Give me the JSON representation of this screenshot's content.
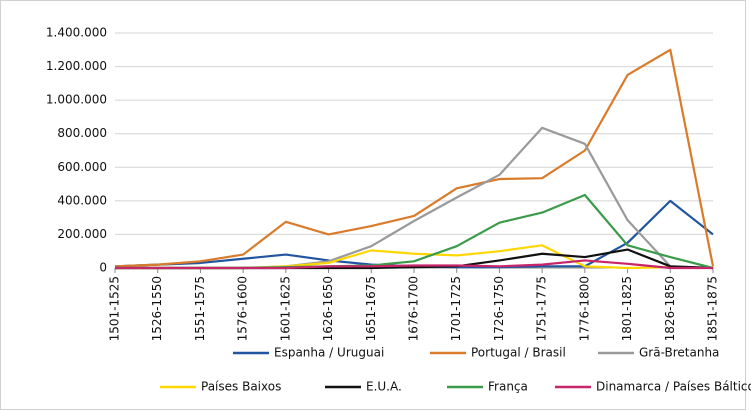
{
  "chart_data": {
    "type": "line",
    "categories": [
      "1501-1525",
      "1526-1550",
      "1551-1575",
      "1576-1600",
      "1601-1625",
      "1626-1650",
      "1651-1675",
      "1676-1700",
      "1701-1725",
      "1726-1750",
      "1751-1775",
      "1776-1800",
      "1801-1825",
      "1826-1850",
      "1851-1875"
    ],
    "series": [
      {
        "name": "Espanha / Uruguai",
        "color": "#2155a0",
        "values": [
          10000,
          20000,
          30000,
          55000,
          80000,
          45000,
          20000,
          10000,
          5000,
          5000,
          10000,
          10000,
          150000,
          400000,
          200000
        ]
      },
      {
        "name": "Portugal / Brasil",
        "color": "#d97b2b",
        "values": [
          10000,
          20000,
          40000,
          80000,
          275000,
          200000,
          250000,
          310000,
          475000,
          530000,
          535000,
          700000,
          1150000,
          1300000,
          10000
        ]
      },
      {
        "name": "Grã-Bretanha",
        "color": "#9a9a9a",
        "values": [
          0,
          0,
          0,
          0,
          10000,
          40000,
          130000,
          280000,
          420000,
          555000,
          835000,
          740000,
          285000,
          10000,
          0
        ]
      },
      {
        "name": "Países Baixos",
        "color": "#ffd700",
        "values": [
          0,
          0,
          0,
          0,
          10000,
          30000,
          105000,
          85000,
          75000,
          100000,
          135000,
          10000,
          0,
          5000,
          0
        ]
      },
      {
        "name": "E.U.A.",
        "color": "#111111",
        "values": [
          0,
          0,
          0,
          0,
          0,
          0,
          0,
          5000,
          10000,
          45000,
          85000,
          65000,
          110000,
          10000,
          0
        ]
      },
      {
        "name": "França",
        "color": "#3a9b4a",
        "values": [
          0,
          0,
          0,
          0,
          5000,
          10000,
          15000,
          40000,
          130000,
          270000,
          330000,
          435000,
          135000,
          65000,
          0
        ]
      },
      {
        "name": "Dinamarca / Países Bálticos",
        "color": "#c8266b",
        "values": [
          0,
          0,
          0,
          0,
          0,
          10000,
          10000,
          15000,
          15000,
          10000,
          20000,
          45000,
          25000,
          0,
          0
        ]
      }
    ],
    "ylim": [
      0,
      1400000
    ],
    "yticks": [
      0,
      {
        "value": 200000,
        "label": "200.000"
      },
      {
        "value": 400000,
        "label": "400.000"
      },
      {
        "value": 600000,
        "label": "600.000"
      },
      {
        "value": 800000,
        "label": "800.000"
      },
      {
        "value": 1000000,
        "label": "1.000.000"
      },
      {
        "value": 1200000,
        "label": "1.200.000"
      },
      {
        "value": 1400000,
        "label": "1.400.000"
      }
    ],
    "grid": true,
    "legend": "bottom"
  }
}
